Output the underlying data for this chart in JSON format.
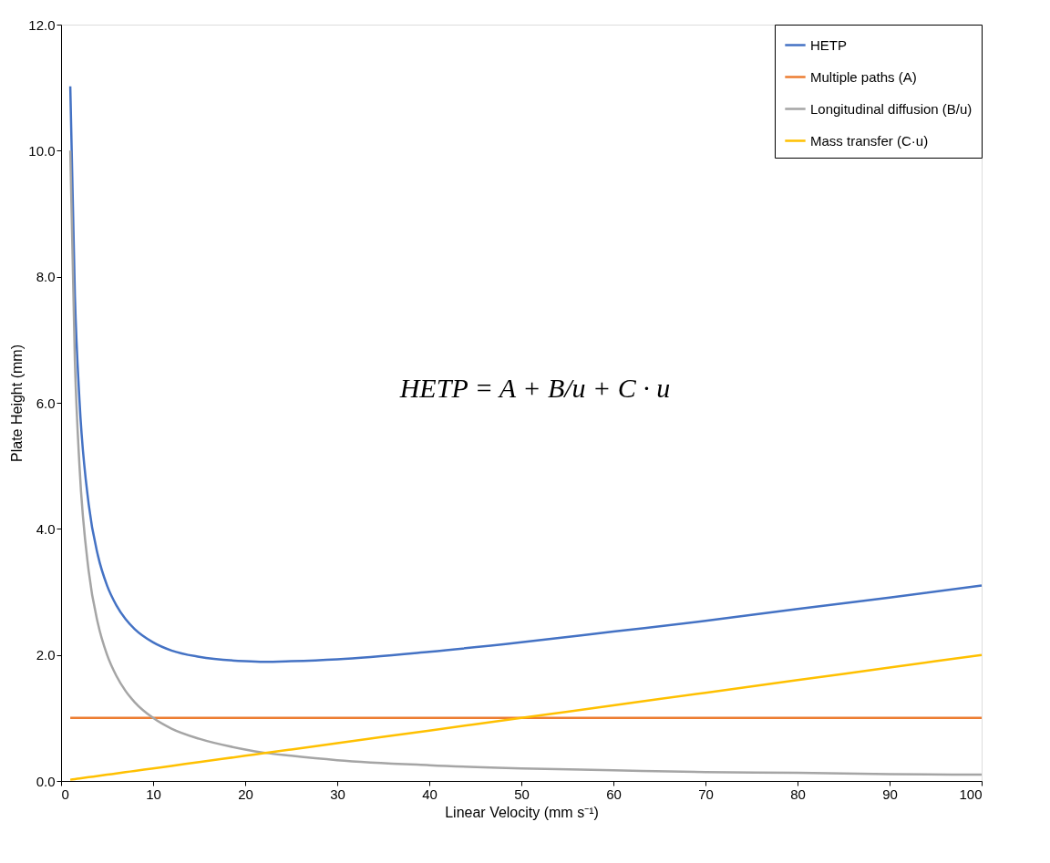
{
  "chart_data": {
    "type": "line",
    "xlabel": "Linear Velocity (mm s⁻¹)",
    "ylabel": "Plate Height (mm)",
    "x": [
      1,
      1.5,
      2,
      3,
      4,
      5,
      6,
      7,
      8,
      10,
      12,
      15,
      20,
      22,
      25,
      30,
      40,
      50,
      60,
      70,
      80,
      90,
      100
    ],
    "series": [
      {
        "name": "HETP",
        "color": "#4472c4",
        "values": [
          11.02,
          7.7,
          6.04,
          4.39,
          3.58,
          3.1,
          2.79,
          2.57,
          2.41,
          2.2,
          2.07,
          1.97,
          1.9,
          1.89,
          1.9,
          1.93,
          2.05,
          2.2,
          2.37,
          2.54,
          2.73,
          2.91,
          3.1
        ]
      },
      {
        "name": "Multiple paths (A)",
        "color": "#ed7d31",
        "values": [
          1,
          1,
          1,
          1,
          1,
          1,
          1,
          1,
          1,
          1,
          1,
          1,
          1,
          1,
          1,
          1,
          1,
          1,
          1,
          1,
          1,
          1,
          1
        ]
      },
      {
        "name": "Longitudinal diffusion (B/u)",
        "color": "#a5a5a5",
        "values": [
          10,
          6.67,
          5,
          3.33,
          2.5,
          2,
          1.67,
          1.43,
          1.25,
          1,
          0.83,
          0.67,
          0.5,
          0.45,
          0.4,
          0.33,
          0.25,
          0.2,
          0.17,
          0.14,
          0.13,
          0.11,
          0.1
        ]
      },
      {
        "name": "Mass transfer (C·u)",
        "color": "#ffc000",
        "values": [
          0.02,
          0.03,
          0.04,
          0.06,
          0.08,
          0.1,
          0.12,
          0.14,
          0.16,
          0.2,
          0.24,
          0.3,
          0.4,
          0.44,
          0.5,
          0.6,
          0.8,
          1.0,
          1.2,
          1.4,
          1.6,
          1.8,
          2.0
        ]
      }
    ],
    "xlim": [
      0,
      100
    ],
    "xticks": [
      0,
      10,
      20,
      30,
      40,
      50,
      60,
      70,
      80,
      90,
      100
    ],
    "ylim": [
      0,
      12
    ],
    "yticks": [
      {
        "value": 0,
        "label": "0.0"
      },
      {
        "value": 2,
        "label": "2.0"
      },
      {
        "value": 4,
        "label": "4.0"
      },
      {
        "value": 6,
        "label": "6.0"
      },
      {
        "value": 8,
        "label": "8.0"
      },
      {
        "value": 10,
        "label": "10.0"
      },
      {
        "value": 12,
        "label": "12.0"
      }
    ],
    "annotations": [
      "HETP = A + B/u + C · u"
    ],
    "grid": false,
    "legend": "top right",
    "marker": "none",
    "line_style": "solid"
  }
}
